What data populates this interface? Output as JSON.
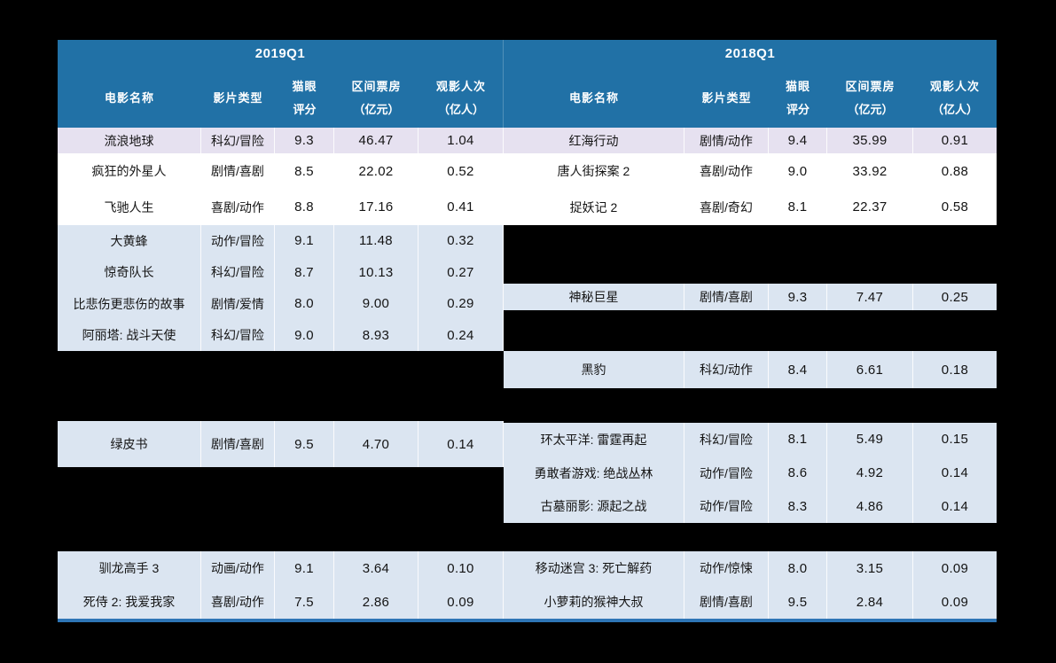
{
  "colors": {
    "page_bg": "#000000",
    "header_bg": "#2171A6",
    "row_lavender": "#E6E1F0",
    "row_white": "#FFFFFF",
    "row_blue": "#DBE5F1",
    "bottom_border": "#2E75B6",
    "header_text": "#FFFFFF",
    "body_text": "#141414"
  },
  "columns": {
    "movie": "电影名称",
    "type": "影片类型",
    "rating_line1": "猫眼",
    "rating_line2": "评分",
    "box_line1": "区间票房",
    "box_line2": "（亿元）",
    "audience_line1": "观影人次",
    "audience_line2": "（亿人）"
  },
  "s2019": {
    "quarter": "2019Q1",
    "rows": [
      {
        "name": "流浪地球",
        "type": "科幻/冒险",
        "rating": "9.3",
        "box": "46.47",
        "audience": "1.04"
      },
      {
        "name": "疯狂的外星人",
        "type": "剧情/喜剧",
        "rating": "8.5",
        "box": "22.02",
        "audience": "0.52"
      },
      {
        "name": "飞驰人生",
        "type": "喜剧/动作",
        "rating": "8.8",
        "box": "17.16",
        "audience": "0.41"
      },
      {
        "name": "大黄蜂",
        "type": "动作/冒险",
        "rating": "9.1",
        "box": "11.48",
        "audience": "0.32"
      },
      {
        "name": "惊奇队长",
        "type": "科幻/冒险",
        "rating": "8.7",
        "box": "10.13",
        "audience": "0.27"
      },
      {
        "name": "比悲伤更悲伤的故事",
        "type": "剧情/爱情",
        "rating": "8.0",
        "box": "9.00",
        "audience": "0.29"
      },
      {
        "name": "阿丽塔: 战斗天使",
        "type": "科幻/冒险",
        "rating": "9.0",
        "box": "8.93",
        "audience": "0.24"
      },
      {
        "name": "绿皮书",
        "type": "剧情/喜剧",
        "rating": "9.5",
        "box": "4.70",
        "audience": "0.14"
      },
      {
        "name": "驯龙高手 3",
        "type": "动画/动作",
        "rating": "9.1",
        "box": "3.64",
        "audience": "0.10"
      },
      {
        "name": "死侍 2: 我爱我家",
        "type": "喜剧/动作",
        "rating": "7.5",
        "box": "2.86",
        "audience": "0.09"
      }
    ]
  },
  "s2018": {
    "quarter": "2018Q1",
    "rows": [
      {
        "name": "红海行动",
        "type": "剧情/动作",
        "rating": "9.4",
        "box": "35.99",
        "audience": "0.91"
      },
      {
        "name": "唐人街探案 2",
        "type": "喜剧/动作",
        "rating": "9.0",
        "box": "33.92",
        "audience": "0.88"
      },
      {
        "name": "捉妖记 2",
        "type": "喜剧/奇幻",
        "rating": "8.1",
        "box": "22.37",
        "audience": "0.58"
      },
      {
        "name": "神秘巨星",
        "type": "剧情/喜剧",
        "rating": "9.3",
        "box": "7.47",
        "audience": "0.25"
      },
      {
        "name": "黑豹",
        "type": "科幻/动作",
        "rating": "8.4",
        "box": "6.61",
        "audience": "0.18"
      },
      {
        "name": "环太平洋: 雷霆再起",
        "type": "科幻/冒险",
        "rating": "8.1",
        "box": "5.49",
        "audience": "0.15"
      },
      {
        "name": "勇敢者游戏: 绝战丛林",
        "type": "动作/冒险",
        "rating": "8.6",
        "box": "4.92",
        "audience": "0.14"
      },
      {
        "name": "古墓丽影: 源起之战",
        "type": "动作/冒险",
        "rating": "8.3",
        "box": "4.86",
        "audience": "0.14"
      },
      {
        "name": "移动迷宫 3: 死亡解药",
        "type": "动作/惊悚",
        "rating": "8.0",
        "box": "3.15",
        "audience": "0.09"
      },
      {
        "name": "小萝莉的猴神大叔",
        "type": "剧情/喜剧",
        "rating": "9.5",
        "box": "2.84",
        "audience": "0.09"
      }
    ]
  },
  "chart_data": {
    "type": "table",
    "title": "",
    "sections": [
      {
        "period": "2019Q1",
        "columns": [
          "电影名称",
          "影片类型",
          "猫眼评分",
          "区间票房（亿元）",
          "观影人次（亿人）"
        ],
        "rows": [
          [
            "流浪地球",
            "科幻/冒险",
            9.3,
            46.47,
            1.04
          ],
          [
            "疯狂的外星人",
            "剧情/喜剧",
            8.5,
            22.02,
            0.52
          ],
          [
            "飞驰人生",
            "喜剧/动作",
            8.8,
            17.16,
            0.41
          ],
          [
            "大黄蜂",
            "动作/冒险",
            9.1,
            11.48,
            0.32
          ],
          [
            "惊奇队长",
            "科幻/冒险",
            8.7,
            10.13,
            0.27
          ],
          [
            "比悲伤更悲伤的故事",
            "剧情/爱情",
            8.0,
            9.0,
            0.29
          ],
          [
            "阿丽塔: 战斗天使",
            "科幻/冒险",
            9.0,
            8.93,
            0.24
          ],
          [
            "绿皮书",
            "剧情/喜剧",
            9.5,
            4.7,
            0.14
          ],
          [
            "驯龙高手 3",
            "动画/动作",
            9.1,
            3.64,
            0.1
          ],
          [
            "死侍 2: 我爱我家",
            "喜剧/动作",
            7.5,
            2.86,
            0.09
          ]
        ]
      },
      {
        "period": "2018Q1",
        "columns": [
          "电影名称",
          "影片类型",
          "猫眼评分",
          "区间票房（亿元）",
          "观影人次（亿人）"
        ],
        "rows": [
          [
            "红海行动",
            "剧情/动作",
            9.4,
            35.99,
            0.91
          ],
          [
            "唐人街探案 2",
            "喜剧/动作",
            9.0,
            33.92,
            0.88
          ],
          [
            "捉妖记 2",
            "喜剧/奇幻",
            8.1,
            22.37,
            0.58
          ],
          [
            "神秘巨星",
            "剧情/喜剧",
            9.3,
            7.47,
            0.25
          ],
          [
            "黑豹",
            "科幻/动作",
            8.4,
            6.61,
            0.18
          ],
          [
            "环太平洋: 雷霆再起",
            "科幻/冒险",
            8.1,
            5.49,
            0.15
          ],
          [
            "勇敢者游戏: 绝战丛林",
            "动作/冒险",
            8.6,
            4.92,
            0.14
          ],
          [
            "古墓丽影: 源起之战",
            "动作/冒险",
            8.3,
            4.86,
            0.14
          ],
          [
            "移动迷宫 3: 死亡解药",
            "动作/惊悚",
            8.0,
            3.15,
            0.09
          ],
          [
            "小萝莉的猴神大叔",
            "剧情/喜剧",
            9.5,
            2.84,
            0.09
          ]
        ]
      }
    ]
  }
}
